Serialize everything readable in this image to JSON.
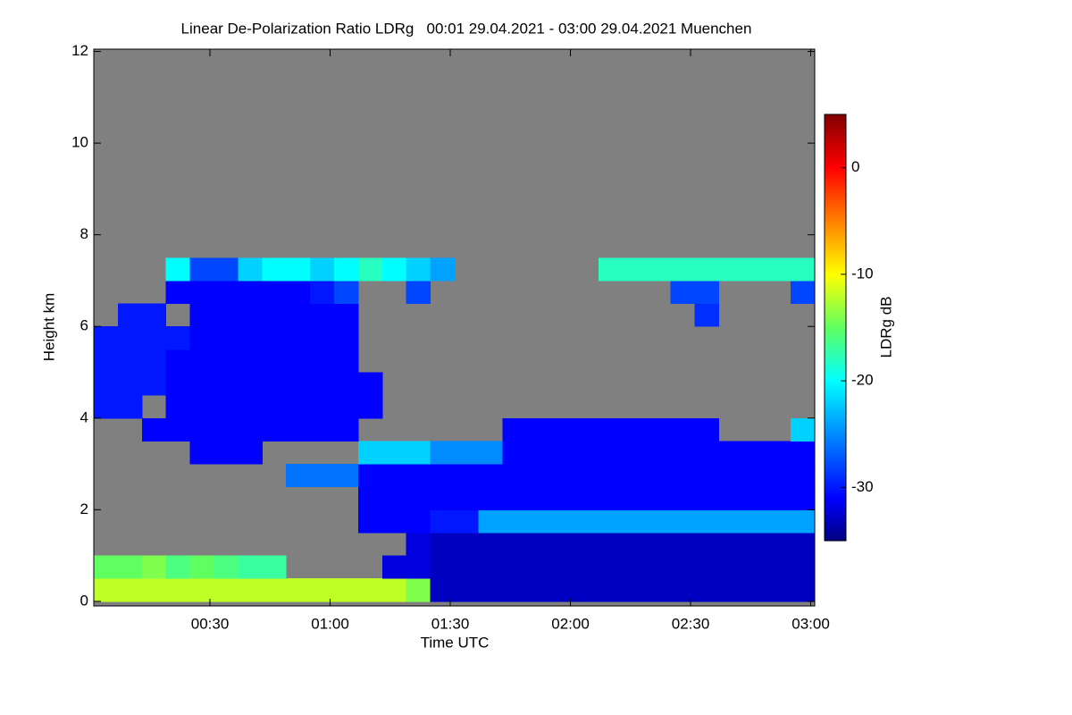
{
  "chart_data": {
    "type": "heatmap",
    "title": "Linear De-Polarization Ratio LDRg   00:01 29.04.2021 - 03:00 29.04.2021 Muenchen",
    "xlabel": "Time UTC",
    "ylabel": "Height km",
    "colorbar_label": "LDRg dB",
    "xlim": [
      1,
      181
    ],
    "ylim": [
      -0.1,
      12.05
    ],
    "clim": [
      -35,
      5
    ],
    "xticks": [
      {
        "value": 30,
        "label": "00:30"
      },
      {
        "value": 60,
        "label": "01:00"
      },
      {
        "value": 90,
        "label": "01:30"
      },
      {
        "value": 120,
        "label": "02:00"
      },
      {
        "value": 150,
        "label": "02:30"
      },
      {
        "value": 180,
        "label": "03:00"
      }
    ],
    "yticks": [
      0,
      2,
      4,
      6,
      8,
      10,
      12
    ],
    "cticks": [
      0,
      -10,
      -20,
      -30
    ],
    "background": "#808080",
    "colormap": [
      {
        "value": -35,
        "color": "#000080"
      },
      {
        "value": -31,
        "color": "#0000ff"
      },
      {
        "value": -20,
        "color": "#00ffff"
      },
      {
        "value": -15,
        "color": "#60ff60"
      },
      {
        "value": -10,
        "color": "#ffff00"
      },
      {
        "value": -5,
        "color": "#ff8000"
      },
      {
        "value": 0,
        "color": "#ff0000"
      },
      {
        "value": 5,
        "color": "#800000"
      }
    ],
    "xbins": [
      1,
      7,
      13,
      19,
      25,
      31,
      37,
      43,
      49,
      55,
      61,
      67,
      73,
      79,
      85,
      91,
      97,
      103,
      109,
      115,
      121,
      127,
      133,
      139,
      145,
      151,
      157,
      163,
      169,
      175,
      181
    ],
    "ybins": [
      0,
      0.5,
      1,
      1.5,
      2,
      2.5,
      3,
      3.5,
      4,
      4.5,
      5,
      5.5,
      6,
      6.5,
      7,
      7.5,
      8,
      8.5,
      9,
      9.5,
      10,
      10.5,
      11,
      11.5,
      12
    ],
    "z": [
      [
        -12,
        -12,
        -12,
        -12,
        -12,
        -12,
        -12,
        -12,
        -12,
        -12,
        -12,
        -12,
        -12,
        -14,
        -33,
        -33,
        -33,
        -33,
        -33,
        -33,
        -33,
        -33,
        -33,
        -33,
        -33,
        -33,
        -33,
        -33,
        -33,
        -33
      ],
      [
        -15,
        -15,
        -14,
        -16,
        -15,
        -16,
        -17,
        -17,
        null,
        null,
        null,
        null,
        -32,
        -32,
        -33,
        -33,
        -33,
        -33,
        -33,
        -33,
        -33,
        -33,
        -33,
        -33,
        -33,
        -33,
        -33,
        -33,
        -33,
        -33
      ],
      [
        null,
        null,
        null,
        null,
        null,
        null,
        null,
        null,
        null,
        null,
        null,
        null,
        null,
        -32,
        -33,
        -33,
        -33,
        -33,
        -33,
        -33,
        -33,
        -33,
        -33,
        -33,
        -33,
        -33,
        -33,
        -33,
        -33,
        -33
      ],
      [
        null,
        null,
        null,
        null,
        null,
        null,
        null,
        null,
        null,
        null,
        null,
        -31,
        -31,
        -31,
        -30,
        -30,
        -24,
        -24,
        -24,
        -24,
        -24,
        -24,
        -24,
        -24,
        -24,
        -24,
        -24,
        -24,
        -24,
        -24
      ],
      [
        null,
        null,
        null,
        null,
        null,
        null,
        null,
        null,
        null,
        null,
        null,
        -31,
        -31,
        -31,
        -31,
        -31,
        -31,
        -31,
        -31,
        -31,
        -31,
        -31,
        -31,
        -31,
        -31,
        -31,
        -31,
        -31,
        -31,
        -31
      ],
      [
        null,
        null,
        null,
        null,
        null,
        null,
        null,
        null,
        -26,
        -26,
        -26,
        -31,
        -31,
        -31,
        -31,
        -31,
        -31,
        -31,
        -31,
        -31,
        -31,
        -31,
        -31,
        -31,
        -31,
        -31,
        -31,
        -31,
        -31,
        -31
      ],
      [
        null,
        null,
        null,
        null,
        -31,
        -31,
        -31,
        null,
        null,
        null,
        null,
        -22,
        -22,
        -22,
        -25,
        -25,
        -25,
        -31,
        -31,
        -31,
        -31,
        -31,
        -31,
        -31,
        -31,
        -31,
        -31,
        -31,
        -31,
        -31
      ],
      [
        null,
        null,
        -31,
        -31,
        -31,
        -31,
        -31,
        -31,
        -31,
        -31,
        -31,
        null,
        null,
        null,
        null,
        null,
        null,
        -31,
        -31,
        -31,
        -31,
        -31,
        -31,
        -31,
        -31,
        -31,
        null,
        null,
        null,
        -22
      ],
      [
        -30,
        -30,
        null,
        -31,
        -31,
        -31,
        -31,
        -31,
        -31,
        -31,
        -31,
        -31,
        null,
        null,
        null,
        null,
        null,
        null,
        null,
        null,
        null,
        null,
        null,
        null,
        null,
        null,
        null,
        null,
        null,
        null
      ],
      [
        -30,
        -30,
        -30,
        -31,
        -31,
        -31,
        -31,
        -31,
        -31,
        -31,
        -31,
        -31,
        null,
        null,
        null,
        null,
        null,
        null,
        null,
        null,
        null,
        null,
        null,
        null,
        null,
        null,
        null,
        null,
        null,
        null
      ],
      [
        -30,
        -30,
        -30,
        -31,
        -31,
        -31,
        -31,
        -31,
        -31,
        -31,
        -31,
        null,
        null,
        null,
        null,
        null,
        null,
        null,
        null,
        null,
        null,
        null,
        null,
        null,
        null,
        null,
        null,
        null,
        null,
        null
      ],
      [
        -30,
        -30,
        -30,
        -30,
        -31,
        -31,
        -31,
        -31,
        -31,
        -31,
        -31,
        null,
        null,
        null,
        null,
        null,
        null,
        null,
        null,
        null,
        null,
        null,
        null,
        null,
        null,
        null,
        null,
        null,
        null,
        null
      ],
      [
        null,
        -30,
        -30,
        null,
        -31,
        -31,
        -31,
        -31,
        -31,
        -31,
        -31,
        null,
        null,
        null,
        null,
        null,
        null,
        null,
        null,
        null,
        null,
        null,
        null,
        null,
        null,
        -29,
        null,
        null,
        null,
        null
      ],
      [
        null,
        null,
        null,
        -31,
        -31,
        -31,
        -31,
        -31,
        -31,
        -30,
        -28,
        null,
        null,
        -28,
        null,
        null,
        null,
        null,
        null,
        null,
        null,
        null,
        null,
        null,
        -28,
        -28,
        null,
        null,
        null,
        -28
      ],
      [
        null,
        null,
        null,
        -20,
        -28,
        -28,
        -22,
        -20,
        -20,
        -22,
        -20,
        -18,
        -20,
        -22,
        -24,
        null,
        null,
        null,
        null,
        null,
        null,
        -18,
        -18,
        -18,
        -18,
        -18,
        -18,
        -18,
        -18,
        -18
      ],
      [
        null,
        null,
        null,
        null,
        null,
        null,
        null,
        null,
        null,
        null,
        null,
        null,
        null,
        null,
        null,
        null,
        null,
        null,
        null,
        null,
        null,
        null,
        null,
        null,
        null,
        null,
        null,
        null,
        null,
        null
      ],
      [
        null,
        null,
        null,
        null,
        null,
        null,
        null,
        null,
        null,
        null,
        null,
        null,
        null,
        null,
        null,
        null,
        null,
        null,
        null,
        null,
        null,
        null,
        null,
        null,
        null,
        null,
        null,
        null,
        null,
        null
      ],
      [
        null,
        null,
        null,
        null,
        null,
        null,
        null,
        null,
        null,
        null,
        null,
        null,
        null,
        null,
        null,
        null,
        null,
        null,
        null,
        null,
        null,
        null,
        null,
        null,
        null,
        null,
        null,
        null,
        null,
        null
      ],
      [
        null,
        null,
        null,
        null,
        null,
        null,
        null,
        null,
        null,
        null,
        null,
        null,
        null,
        null,
        null,
        null,
        null,
        null,
        null,
        null,
        null,
        null,
        null,
        null,
        null,
        null,
        null,
        null,
        null,
        null
      ],
      [
        null,
        null,
        null,
        null,
        null,
        null,
        null,
        null,
        null,
        null,
        null,
        null,
        null,
        null,
        null,
        null,
        null,
        null,
        null,
        null,
        null,
        null,
        null,
        null,
        null,
        null,
        null,
        null,
        null,
        null
      ],
      [
        null,
        null,
        null,
        null,
        null,
        null,
        null,
        null,
        null,
        null,
        null,
        null,
        null,
        null,
        null,
        null,
        null,
        null,
        null,
        null,
        null,
        null,
        null,
        null,
        null,
        null,
        null,
        null,
        null,
        null
      ],
      [
        null,
        null,
        null,
        null,
        null,
        null,
        null,
        null,
        null,
        null,
        null,
        null,
        null,
        null,
        null,
        null,
        null,
        null,
        null,
        null,
        null,
        null,
        null,
        null,
        null,
        null,
        null,
        null,
        null,
        null
      ],
      [
        null,
        null,
        null,
        null,
        null,
        null,
        null,
        null,
        null,
        null,
        null,
        null,
        null,
        null,
        null,
        null,
        null,
        null,
        null,
        null,
        null,
        null,
        null,
        null,
        null,
        null,
        null,
        null,
        null,
        null
      ],
      [
        null,
        null,
        null,
        null,
        null,
        null,
        null,
        null,
        null,
        null,
        null,
        null,
        null,
        null,
        null,
        null,
        null,
        null,
        null,
        null,
        null,
        null,
        null,
        null,
        null,
        null,
        null,
        null,
        null,
        null
      ]
    ]
  }
}
